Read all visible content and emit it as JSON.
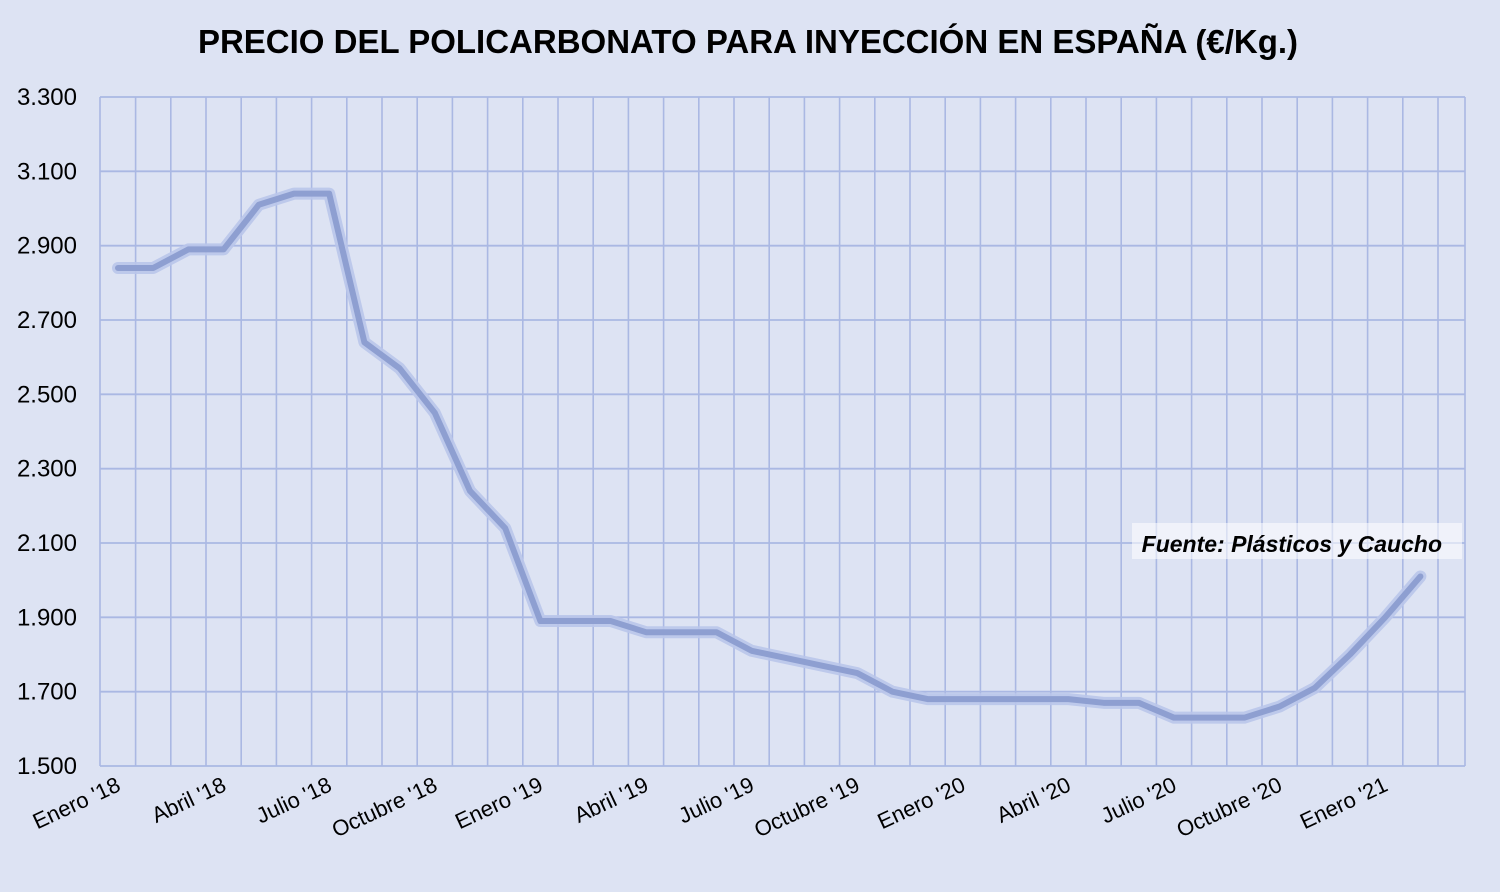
{
  "chart_data": {
    "type": "line",
    "title": "PRECIO DEL POLICARBONATO  PARA INYECCIÓN  EN ESPAÑA (€/Kg.)",
    "xlabel": "",
    "ylabel": "",
    "ylim": [
      1500,
      3300
    ],
    "yticks": [
      "3.300",
      "3.100",
      "2.900",
      "2.700",
      "2.500",
      "2.300",
      "2.100",
      "1.900",
      "1.700",
      "1.500"
    ],
    "ytick_values": [
      3300,
      3100,
      2900,
      2700,
      2500,
      2300,
      2100,
      1900,
      1700,
      1500
    ],
    "xtick_labels": [
      "Enero '18",
      "Abril '18",
      "Julio '18",
      "Octubre '18",
      "Enero '19",
      "Abril '19",
      "Julio '19",
      "Octubre '19",
      "Enero '20",
      "Abril '20",
      "Julio '20",
      "Octubre '20",
      "Enero '21"
    ],
    "xtick_indices": [
      0,
      3,
      6,
      9,
      12,
      15,
      18,
      21,
      24,
      27,
      30,
      33,
      36
    ],
    "grid": true,
    "line_color": "#8e9fd1",
    "series": [
      {
        "name": "",
        "values": [
          2840,
          2840,
          2890,
          2890,
          3010,
          3040,
          3040,
          2640,
          2570,
          2450,
          2240,
          2140,
          1890,
          1890,
          1890,
          1860,
          1860,
          1860,
          1810,
          1790,
          1770,
          1750,
          1700,
          1680,
          1680,
          1680,
          1680,
          1680,
          1670,
          1670,
          1630,
          1630,
          1630,
          1660,
          1710,
          1800,
          1900,
          2010
        ]
      }
    ],
    "annotation": "Fuente: Plásticos  y Caucho"
  }
}
